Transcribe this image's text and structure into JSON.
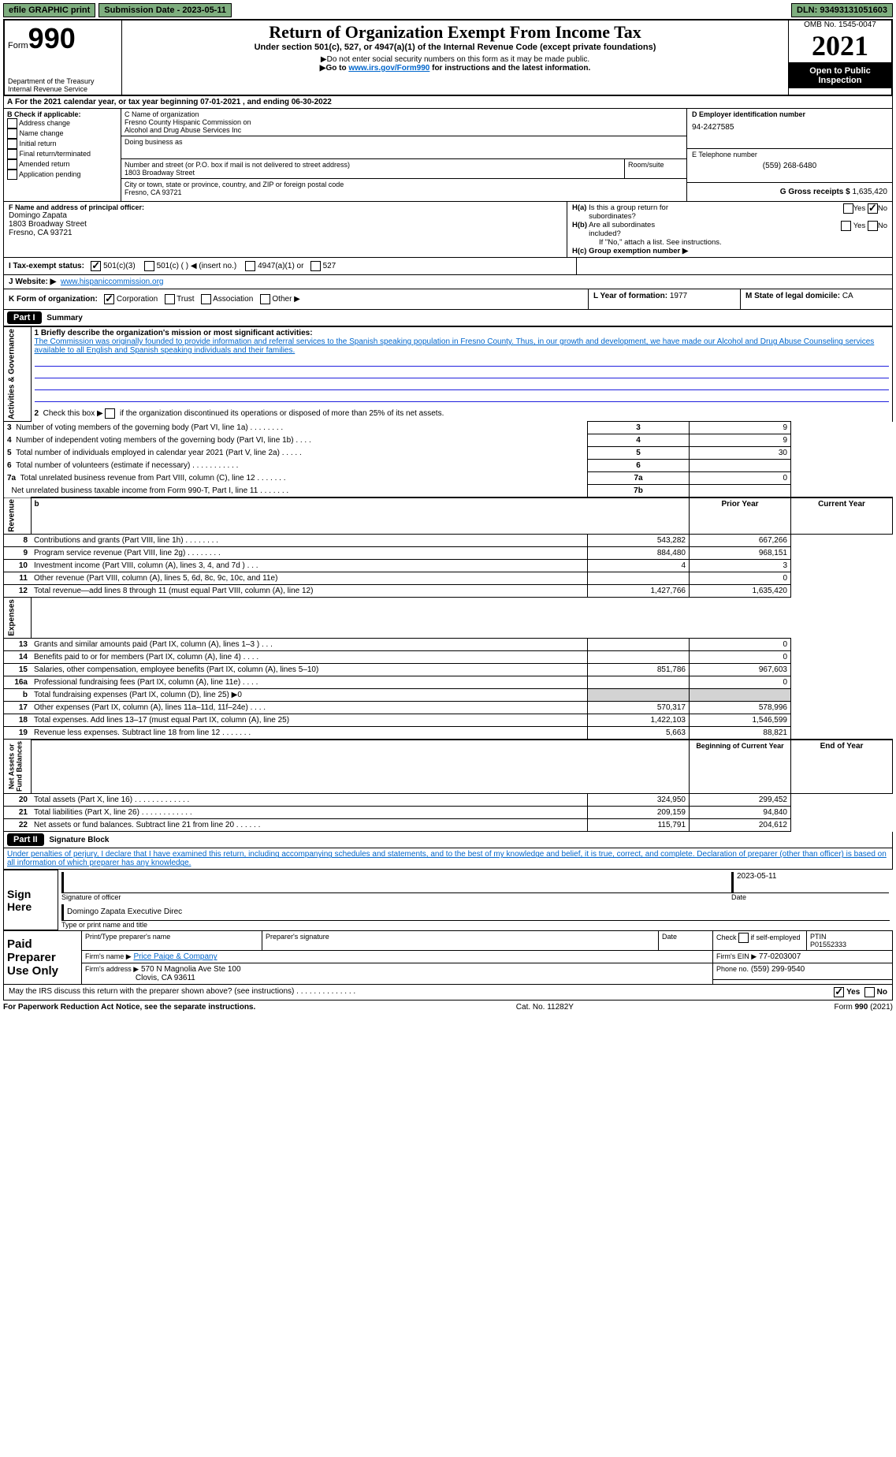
{
  "topbar": {
    "efile": "efile GRAPHIC print",
    "submission": "Submission Date - 2023-05-11",
    "dln": "DLN: 93493131051603"
  },
  "header": {
    "form_label": "Form",
    "form_number": "990",
    "dept": "Department of the Treasury",
    "irs": "Internal Revenue Service",
    "title": "Return of Organization Exempt From Income Tax",
    "subtitle": "Under section 501(c), 527, or 4947(a)(1) of the Internal Revenue Code (except private foundations)",
    "note1": "Do not enter social security numbers on this form as it may be made public.",
    "note2_pre": "Go to ",
    "note2_link": "www.irs.gov/Form990",
    "note2_post": " for instructions and the latest information.",
    "omb": "OMB No. 1545-0047",
    "year": "2021",
    "open": "Open to Public Inspection"
  },
  "sectionA": {
    "text": "For the 2021 calendar year, or tax year beginning 07-01-2021    , and ending 06-30-2022"
  },
  "sectionB": {
    "label": "B Check if applicable:",
    "items": [
      "Address change",
      "Name change",
      "Initial return",
      "Final return/terminated",
      "Amended return",
      "Application pending"
    ]
  },
  "sectionC": {
    "name_label": "C Name of organization",
    "name1": "Fresno County Hispanic Commission on",
    "name2": "Alcohol and Drug Abuse Services Inc",
    "dba_label": "Doing business as",
    "street_label": "Number and street (or P.O. box if mail is not delivered to street address)",
    "room_label": "Room/suite",
    "street": "1803 Broadway Street",
    "city_label": "City or town, state or province, country, and ZIP or foreign postal code",
    "city": "Fresno, CA  93721"
  },
  "sectionD": {
    "label": "D Employer identification number",
    "ein": "94-2427585"
  },
  "sectionE": {
    "label": "E Telephone number",
    "phone": "(559) 268-6480"
  },
  "sectionG": {
    "label": "G Gross receipts $",
    "amount": "1,635,420"
  },
  "sectionF": {
    "label": "F Name and address of principal officer:",
    "name": "Domingo Zapata",
    "addr1": "1803 Broadway Street",
    "addr2": "Fresno, CA  93721"
  },
  "sectionH": {
    "a_label": "H(a)  Is this a group return for subordinates?",
    "b_label": "H(b)  Are all subordinates included?",
    "b_note": "If \"No,\" attach a list. See instructions.",
    "c_label": "H(c)  Group exemption number ▶",
    "yes": "Yes",
    "no": "No"
  },
  "sectionI": {
    "label": "I   Tax-exempt status:",
    "opt1": "501(c)(3)",
    "opt2": "501(c) (  ) ◀ (insert no.)",
    "opt3": "4947(a)(1) or",
    "opt4": "527"
  },
  "sectionJ": {
    "label": "J   Website: ▶",
    "url": "www.hispaniccommission.org"
  },
  "sectionK": {
    "label": "K Form of organization:",
    "opts": [
      "Corporation",
      "Trust",
      "Association",
      "Other ▶"
    ]
  },
  "sectionL": {
    "label": "L Year of formation:",
    "year": "1977"
  },
  "sectionM": {
    "label": "M State of legal domicile:",
    "state": "CA"
  },
  "part1": {
    "header": "Part I",
    "title": "Summary",
    "q1_label": "1 Briefly describe the organization's mission or most significant activities:",
    "q1_text": "The Commission was originally founded to provide information and referral services to the Spanish speaking population in Fresno County. Thus, in our growth and development, we have made our Alcohol and Drug Abuse Counseling services available to all English and Spanish speaking individuals and their families.",
    "q2": "Check this box ▶      if the organization discontinued its operations or disposed of more than 25% of its net assets.",
    "lines_gov": [
      {
        "n": "3",
        "t": "Number of voting members of the governing body (Part VI, line 1a)   .    .    .    .    .    .    .    .",
        "box": "3",
        "v": "9"
      },
      {
        "n": "4",
        "t": "Number of independent voting members of the governing body (Part VI, line 1b)    .    .    .    .",
        "box": "4",
        "v": "9"
      },
      {
        "n": "5",
        "t": "Total number of individuals employed in calendar year 2021 (Part V, line 2a)    .    .    .    .    .",
        "box": "5",
        "v": "30"
      },
      {
        "n": "6",
        "t": "Total number of volunteers (estimate if necessary)    .    .    .    .    .    .    .    .    .    .    .",
        "box": "6",
        "v": ""
      },
      {
        "n": "7a",
        "t": "Total unrelated business revenue from Part VIII, column (C), line 12    .    .    .    .    .    .    .",
        "box": "7a",
        "v": "0"
      },
      {
        "n": "",
        "t": "Net unrelated business taxable income from Form 990-T, Part I, line 11   .    .    .    .    .    .    .",
        "box": "7b",
        "v": ""
      }
    ],
    "prior_label": "Prior Year",
    "current_label": "Current Year",
    "revenue": [
      {
        "n": "8",
        "t": "Contributions and grants (Part VIII, line 1h)   .    .    .    .    .    .    .    .",
        "p": "543,282",
        "c": "667,266"
      },
      {
        "n": "9",
        "t": "Program service revenue (Part VIII, line 2g)   .    .    .    .    .    .    .    .",
        "p": "884,480",
        "c": "968,151"
      },
      {
        "n": "10",
        "t": "Investment income (Part VIII, column (A), lines 3, 4, and 7d )   .    .    .",
        "p": "4",
        "c": "3"
      },
      {
        "n": "11",
        "t": "Other revenue (Part VIII, column (A), lines 5, 6d, 8c, 9c, 10c, and 11e)",
        "p": "",
        "c": "0"
      },
      {
        "n": "12",
        "t": "Total revenue—add lines 8 through 11 (must equal Part VIII, column (A), line 12)",
        "p": "1,427,766",
        "c": "1,635,420"
      }
    ],
    "expenses": [
      {
        "n": "13",
        "t": "Grants and similar amounts paid (Part IX, column (A), lines 1–3 )   .    .    .",
        "p": "",
        "c": "0"
      },
      {
        "n": "14",
        "t": "Benefits paid to or for members (Part IX, column (A), line 4)   .    .    .    .",
        "p": "",
        "c": "0"
      },
      {
        "n": "15",
        "t": "Salaries, other compensation, employee benefits (Part IX, column (A), lines 5–10)",
        "p": "851,786",
        "c": "967,603"
      },
      {
        "n": "16a",
        "t": "Professional fundraising fees (Part IX, column (A), line 11e)   .    .    .    .",
        "p": "",
        "c": "0"
      },
      {
        "n": "b",
        "t": "Total fundraising expenses (Part IX, column (D), line 25) ▶0",
        "p": "shaded",
        "c": "shaded"
      },
      {
        "n": "17",
        "t": "Other expenses (Part IX, column (A), lines 11a–11d, 11f–24e)   .    .    .    .",
        "p": "570,317",
        "c": "578,996"
      },
      {
        "n": "18",
        "t": "Total expenses. Add lines 13–17 (must equal Part IX, column (A), line 25)",
        "p": "1,422,103",
        "c": "1,546,599"
      },
      {
        "n": "19",
        "t": "Revenue less expenses. Subtract line 18 from line 12   .    .    .    .    .    .    .",
        "p": "5,663",
        "c": "88,821"
      }
    ],
    "boy_label": "Beginning of Current Year",
    "eoy_label": "End of Year",
    "netassets": [
      {
        "n": "20",
        "t": "Total assets (Part X, line 16)   .    .    .    .    .    .    .    .    .    .    .    .    .",
        "p": "324,950",
        "c": "299,452"
      },
      {
        "n": "21",
        "t": "Total liabilities (Part X, line 26)    .    .    .    .    .    .    .    .    .    .    .    .",
        "p": "209,159",
        "c": "94,840"
      },
      {
        "n": "22",
        "t": "Net assets or fund balances. Subtract line 21 from line 20   .    .    .    .    .    .",
        "p": "115,791",
        "c": "204,612"
      }
    ]
  },
  "part2": {
    "header": "Part II",
    "title": "Signature Block",
    "declaration": "Under penalties of perjury, I declare that I have examined this return, including accompanying schedules and statements, and to the best of my knowledge and belief, it is true, correct, and complete. Declaration of preparer (other than officer) is based on all information of which preparer has any knowledge."
  },
  "sign": {
    "label": "Sign Here",
    "sig_officer": "Signature of officer",
    "date": "Date",
    "date_val": "2023-05-11",
    "typed": "Domingo Zapata  Executive Direc",
    "typed_label": "Type or print name and title"
  },
  "paid": {
    "label": "Paid Preparer Use Only",
    "h1": "Print/Type preparer's name",
    "h2": "Preparer's signature",
    "h3": "Date",
    "h4_check": "Check         if self-employed",
    "h5": "PTIN",
    "ptin": "P01552333",
    "firm_name_label": "Firm's name    ▶",
    "firm_name": "Price Paige & Company",
    "firm_ein_label": "Firm's EIN ▶",
    "firm_ein": "77-0203007",
    "firm_addr_label": "Firm's address ▶",
    "firm_addr1": "570 N Magnolia Ave Ste 100",
    "firm_addr2": "Clovis, CA  93611",
    "phone_label": "Phone no.",
    "phone": "(559) 299-9540"
  },
  "discuss": {
    "text": "May the IRS discuss this return with the preparer shown above? (see instructions)   .    .    .    .    .    .    .    .    .    .    .    .    .    .",
    "yes": "Yes",
    "no": "No"
  },
  "footer": {
    "left": "For Paperwork Reduction Act Notice, see the separate instructions.",
    "center": "Cat. No. 11282Y",
    "right": "Form 990 (2021)"
  }
}
